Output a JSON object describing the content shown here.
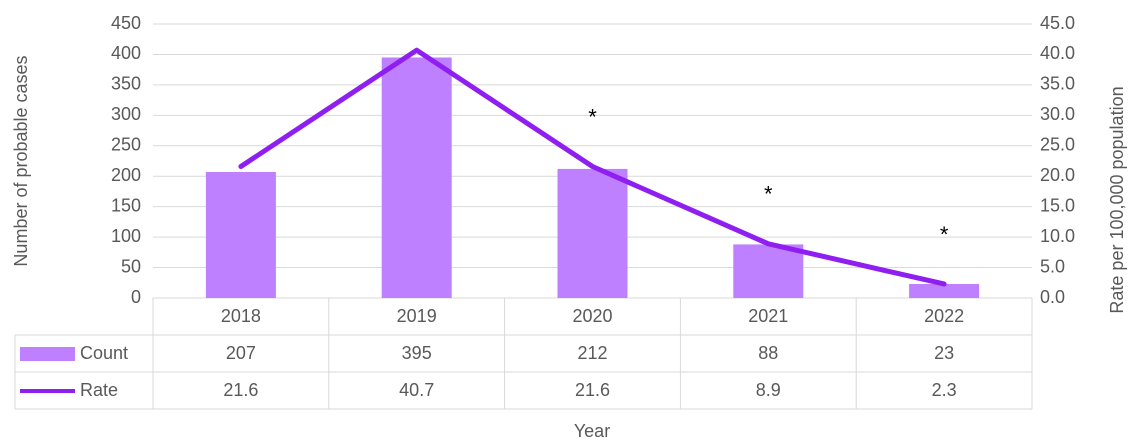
{
  "chart_data": {
    "type": "bar-line",
    "categories": [
      "2018",
      "2019",
      "2020",
      "2021",
      "2022"
    ],
    "series": [
      {
        "name": "Count",
        "color": "#bf80ff",
        "type": "bar",
        "values": [
          207,
          395,
          212,
          88,
          23
        ]
      },
      {
        "name": "Rate",
        "color": "#8f1ff0",
        "type": "line",
        "axis": "y2",
        "values": [
          21.6,
          40.7,
          21.6,
          8.9,
          2.3
        ]
      }
    ],
    "xlabel": "Year",
    "ylabel": "Number of probable cases",
    "y2label": "Rate per 100,000 population",
    "ylim": [
      0,
      450
    ],
    "yticks": [
      0,
      50,
      100,
      150,
      200,
      250,
      300,
      350,
      400,
      450
    ],
    "y2lim": [
      0,
      45
    ],
    "y2ticks": [
      {
        "value": 0,
        "label": "0.0"
      },
      {
        "value": 5,
        "label": "5.0"
      },
      {
        "value": 10,
        "label": "10.0"
      },
      {
        "value": 15,
        "label": "15.0"
      },
      {
        "value": 20,
        "label": "20.0"
      },
      {
        "value": 25,
        "label": "25.0"
      },
      {
        "value": 30,
        "label": "30.0"
      },
      {
        "value": 35,
        "label": "35.0"
      },
      {
        "value": 40,
        "label": "40.0"
      },
      {
        "value": 45,
        "label": "45.0"
      }
    ],
    "grid": true,
    "annotations": [
      {
        "text": "*",
        "category": "2020"
      },
      {
        "text": "*",
        "category": "2021"
      },
      {
        "text": "*",
        "category": "2022"
      }
    ]
  }
}
